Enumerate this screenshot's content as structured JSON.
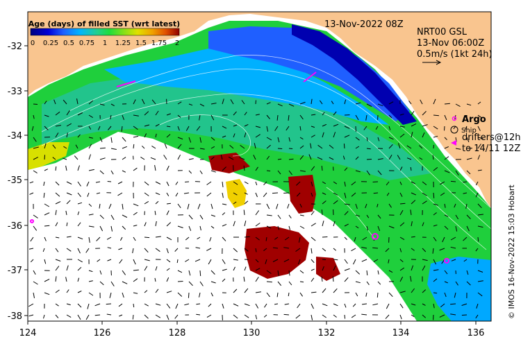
{
  "legend": {
    "title": "Age (days) of filled SST (wrt latest)",
    "ticks": [
      "0",
      "0.25",
      "0.5",
      "0.75",
      "1",
      "1.25",
      "1.5",
      "1.75",
      "2"
    ],
    "colors": [
      "#00007f",
      "#0000d8",
      "#1f5fff",
      "#00b4ff",
      "#22d08c",
      "#1fdd3c",
      "#7ee01a",
      "#e0e000",
      "#f0a000",
      "#e05000",
      "#900000"
    ]
  },
  "timestamp": "13-Nov-2022 08Z",
  "current_product": {
    "line1": "NRT00 GSL",
    "line2": "13-Nov 06:00Z",
    "line3": "0.5m/s (1kt 24h)"
  },
  "key": {
    "argo": "Argo",
    "ship": "Ship",
    "drifters_line1": "drifters@12h",
    "drifters_line2": "to 14/11 12Z"
  },
  "credit": "© IMOS 16-Nov-2022 15:03 Hobart",
  "axes": {
    "x_ticks": [
      "124",
      "126",
      "128",
      "130",
      "132",
      "134",
      "136"
    ],
    "y_ticks": [
      "-32",
      "-33",
      "-34",
      "-35",
      "-36",
      "-37",
      "-38"
    ]
  },
  "colors": {
    "land": "#f9c58f",
    "no_data": "#ffffff",
    "argo": "#ff00ff"
  }
}
